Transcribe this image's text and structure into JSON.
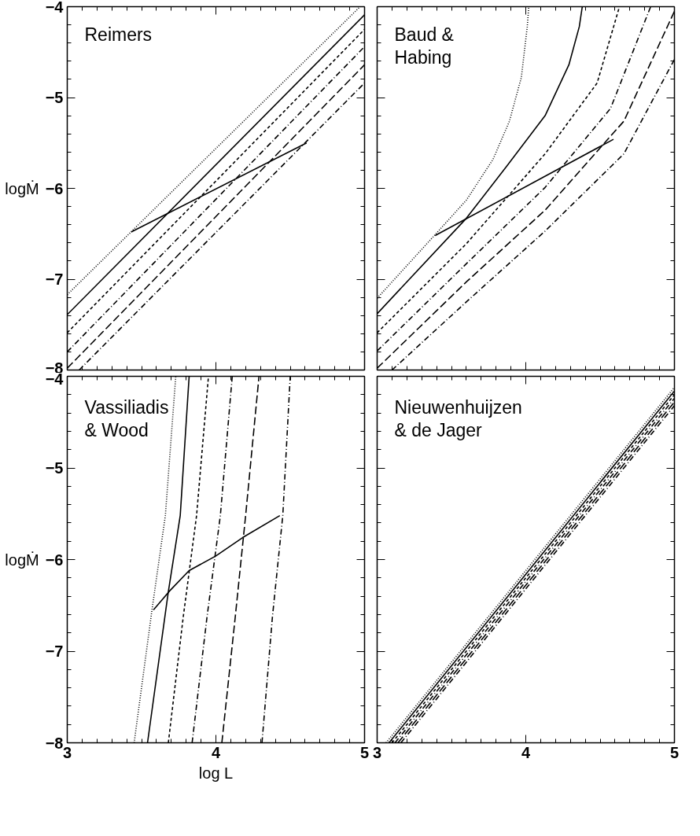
{
  "chart_data": [
    {
      "type": "line",
      "title": "Reimers",
      "ylabel": "logṀ",
      "tick_labels": "y",
      "grid": false,
      "marker": "none",
      "xlim": [
        3,
        5
      ],
      "ylim": [
        -8,
        -4
      ],
      "xticks": [
        3,
        {
          "value": 3.1,
          "label": null
        },
        {
          "value": 3.2,
          "label": null
        },
        {
          "value": 3.3,
          "label": null
        },
        {
          "value": 3.4,
          "label": null
        },
        {
          "value": 3.5,
          "label": null
        },
        {
          "value": 3.6,
          "label": null
        },
        {
          "value": 3.7,
          "label": null
        },
        {
          "value": 3.8,
          "label": null
        },
        {
          "value": 3.9,
          "label": null
        },
        4,
        {
          "value": 4.1,
          "label": null
        },
        {
          "value": 4.2,
          "label": null
        },
        {
          "value": 4.3,
          "label": null
        },
        {
          "value": 4.4,
          "label": null
        },
        {
          "value": 4.5,
          "label": null
        },
        {
          "value": 4.6,
          "label": null
        },
        {
          "value": 4.7,
          "label": null
        },
        {
          "value": 4.8,
          "label": null
        },
        {
          "value": 4.9,
          "label": null
        },
        5
      ],
      "yticks": [
        -8,
        {
          "value": -7.8,
          "label": null
        },
        {
          "value": -7.6,
          "label": null
        },
        {
          "value": -7.4,
          "label": null
        },
        {
          "value": -7.2,
          "label": null
        },
        -7,
        {
          "value": -6.8,
          "label": null
        },
        {
          "value": -6.6,
          "label": null
        },
        {
          "value": -6.4,
          "label": null
        },
        {
          "value": -6.2,
          "label": null
        },
        -6,
        {
          "value": -5.8,
          "label": null
        },
        {
          "value": -5.6,
          "label": null
        },
        {
          "value": -5.4,
          "label": null
        },
        {
          "value": -5.2,
          "label": null
        },
        -5,
        {
          "value": -4.8,
          "label": null
        },
        {
          "value": -4.6,
          "label": null
        },
        {
          "value": -4.4,
          "label": null
        },
        {
          "value": -4.2,
          "label": null
        },
        -4
      ],
      "series": [
        {
          "color": "#000000",
          "line_style": "dotted",
          "x": [
            3,
            4.97
          ],
          "values": [
            -7.17,
            -4.0
          ]
        },
        {
          "color": "#000000",
          "line_style": "solid",
          "x": [
            3,
            5
          ],
          "values": [
            -7.39,
            -4.09
          ]
        },
        {
          "color": "#000000",
          "line_style": "dashed",
          "x": [
            3,
            5
          ],
          "values": [
            -7.59,
            -4.25
          ]
        },
        {
          "color": "#000000",
          "line_style": "dashdot",
          "x": [
            3,
            5
          ],
          "values": [
            -7.8,
            -4.44
          ]
        },
        {
          "color": "#000000",
          "line_style": "longdash",
          "x": [
            3,
            5
          ],
          "values": [
            -7.98,
            -4.64
          ]
        },
        {
          "color": "#000000",
          "line_style": "dashdot",
          "x": [
            3.08,
            5
          ],
          "values": [
            -8.0,
            -4.84
          ]
        },
        {
          "color": "#000000",
          "line_style": "solid",
          "x": [
            3.43,
            4.61
          ],
          "values": [
            -6.48,
            -5.5
          ]
        }
      ]
    },
    {
      "type": "line",
      "title": "Baud &\nHabing",
      "tick_labels": false,
      "grid": false,
      "marker": "none",
      "xlim": [
        3,
        5
      ],
      "ylim": [
        -8,
        -4
      ],
      "xticks": [
        3,
        {
          "value": 3.1,
          "label": null
        },
        {
          "value": 3.2,
          "label": null
        },
        {
          "value": 3.3,
          "label": null
        },
        {
          "value": 3.4,
          "label": null
        },
        {
          "value": 3.5,
          "label": null
        },
        {
          "value": 3.6,
          "label": null
        },
        {
          "value": 3.7,
          "label": null
        },
        {
          "value": 3.8,
          "label": null
        },
        {
          "value": 3.9,
          "label": null
        },
        4,
        {
          "value": 4.1,
          "label": null
        },
        {
          "value": 4.2,
          "label": null
        },
        {
          "value": 4.3,
          "label": null
        },
        {
          "value": 4.4,
          "label": null
        },
        {
          "value": 4.5,
          "label": null
        },
        {
          "value": 4.6,
          "label": null
        },
        {
          "value": 4.7,
          "label": null
        },
        {
          "value": 4.8,
          "label": null
        },
        {
          "value": 4.9,
          "label": null
        },
        5
      ],
      "yticks": [
        -8,
        {
          "value": -7.8,
          "label": null
        },
        {
          "value": -7.6,
          "label": null
        },
        {
          "value": -7.4,
          "label": null
        },
        {
          "value": -7.2,
          "label": null
        },
        -7,
        {
          "value": -6.8,
          "label": null
        },
        {
          "value": -6.6,
          "label": null
        },
        {
          "value": -6.4,
          "label": null
        },
        {
          "value": -6.2,
          "label": null
        },
        -6,
        {
          "value": -5.8,
          "label": null
        },
        {
          "value": -5.6,
          "label": null
        },
        {
          "value": -5.4,
          "label": null
        },
        {
          "value": -5.2,
          "label": null
        },
        -5,
        {
          "value": -4.8,
          "label": null
        },
        {
          "value": -4.6,
          "label": null
        },
        {
          "value": -4.4,
          "label": null
        },
        {
          "value": -4.2,
          "label": null
        },
        -4
      ],
      "series": [
        {
          "color": "#000000",
          "line_style": "dotted",
          "x": [
            3,
            3.39,
            3.6,
            3.78,
            3.89,
            3.97,
            4.01,
            4.02
          ],
          "values": [
            -7.21,
            -6.51,
            -6.13,
            -5.68,
            -5.26,
            -4.78,
            -4.22,
            -4.0
          ]
        },
        {
          "color": "#000000",
          "line_style": "solid",
          "x": [
            3,
            3.6,
            3.87,
            4.13,
            4.29,
            4.36,
            4.38
          ],
          "values": [
            -7.38,
            -6.33,
            -5.76,
            -5.2,
            -4.64,
            -4.22,
            -4.0
          ]
        },
        {
          "color": "#000000",
          "line_style": "dashed",
          "x": [
            3,
            3.6,
            4.13,
            4.48,
            4.63
          ],
          "values": [
            -7.59,
            -6.61,
            -5.62,
            -4.84,
            -4.0
          ]
        },
        {
          "color": "#000000",
          "line_style": "dashdot",
          "x": [
            3,
            3.6,
            4.13,
            4.57,
            4.84
          ],
          "values": [
            -7.79,
            -6.83,
            -5.99,
            -5.12,
            -4.0
          ]
        },
        {
          "color": "#000000",
          "line_style": "longdash",
          "x": [
            3,
            3.6,
            4.13,
            4.66,
            5
          ],
          "values": [
            -7.98,
            -7.03,
            -6.24,
            -5.26,
            -4.05
          ]
        },
        {
          "color": "#000000",
          "line_style": "dashdot",
          "x": [
            3.1,
            3.6,
            4.13,
            4.66,
            5
          ],
          "values": [
            -8.0,
            -7.25,
            -6.47,
            -5.62,
            -4.58
          ]
        },
        {
          "color": "#000000",
          "line_style": "solid",
          "x": [
            3.39,
            4.59
          ],
          "values": [
            -6.52,
            -5.46
          ]
        }
      ]
    },
    {
      "type": "line",
      "title": "Vassiliadis\n& Wood",
      "ylabel": "logṀ",
      "xlabel": "log L",
      "grid": false,
      "marker": "none",
      "xlim": [
        3,
        5
      ],
      "ylim": [
        -8,
        -4
      ],
      "xticks": [
        3,
        {
          "value": 3.1,
          "label": null
        },
        {
          "value": 3.2,
          "label": null
        },
        {
          "value": 3.3,
          "label": null
        },
        {
          "value": 3.4,
          "label": null
        },
        {
          "value": 3.5,
          "label": null
        },
        {
          "value": 3.6,
          "label": null
        },
        {
          "value": 3.7,
          "label": null
        },
        {
          "value": 3.8,
          "label": null
        },
        {
          "value": 3.9,
          "label": null
        },
        4,
        {
          "value": 4.1,
          "label": null
        },
        {
          "value": 4.2,
          "label": null
        },
        {
          "value": 4.3,
          "label": null
        },
        {
          "value": 4.4,
          "label": null
        },
        {
          "value": 4.5,
          "label": null
        },
        {
          "value": 4.6,
          "label": null
        },
        {
          "value": 4.7,
          "label": null
        },
        {
          "value": 4.8,
          "label": null
        },
        {
          "value": 4.9,
          "label": null
        },
        5
      ],
      "yticks": [
        -8,
        {
          "value": -7.8,
          "label": null
        },
        {
          "value": -7.6,
          "label": null
        },
        {
          "value": -7.4,
          "label": null
        },
        {
          "value": -7.2,
          "label": null
        },
        -7,
        {
          "value": -6.8,
          "label": null
        },
        {
          "value": -6.6,
          "label": null
        },
        {
          "value": -6.4,
          "label": null
        },
        {
          "value": -6.2,
          "label": null
        },
        -6,
        {
          "value": -5.8,
          "label": null
        },
        {
          "value": -5.6,
          "label": null
        },
        {
          "value": -5.4,
          "label": null
        },
        {
          "value": -5.2,
          "label": null
        },
        -5,
        {
          "value": -4.8,
          "label": null
        },
        {
          "value": -4.6,
          "label": null
        },
        {
          "value": -4.4,
          "label": null
        },
        {
          "value": -4.2,
          "label": null
        },
        -4
      ],
      "series": [
        {
          "color": "#000000",
          "line_style": "dotted",
          "x": [
            3.45,
            3.57,
            3.66,
            3.73
          ],
          "values": [
            -8.0,
            -6.55,
            -5.52,
            -4.0
          ]
        },
        {
          "color": "#000000",
          "line_style": "solid",
          "x": [
            3.54,
            3.68,
            3.76,
            3.82
          ],
          "values": [
            -8.0,
            -6.35,
            -5.52,
            -4.0
          ]
        },
        {
          "color": "#000000",
          "line_style": "dashed",
          "x": [
            3.68,
            3.78,
            3.87,
            3.95
          ],
          "values": [
            -8.0,
            -6.63,
            -5.52,
            -4.0
          ]
        },
        {
          "color": "#000000",
          "line_style": "dashdot",
          "x": [
            3.84,
            3.94,
            4.03,
            4.11
          ],
          "values": [
            -8.0,
            -6.63,
            -5.52,
            -4.0
          ]
        },
        {
          "color": "#000000",
          "line_style": "longdash",
          "x": [
            4.04,
            4.13,
            4.2,
            4.29
          ],
          "values": [
            -8.0,
            -6.63,
            -5.52,
            -4.0
          ]
        },
        {
          "color": "#000000",
          "line_style": "dashdot",
          "x": [
            4.31,
            4.38,
            4.45,
            4.5
          ],
          "values": [
            -8.0,
            -6.63,
            -5.52,
            -4.0
          ]
        },
        {
          "color": "#000000",
          "line_style": "solid",
          "x": [
            3.58,
            3.69,
            3.82,
            4.0,
            4.18,
            4.43
          ],
          "values": [
            -6.55,
            -6.34,
            -6.12,
            -5.96,
            -5.76,
            -5.52
          ]
        }
      ]
    },
    {
      "type": "line",
      "title": "Nieuwenhuijzen\n& de Jager",
      "tick_labels": "x",
      "grid": false,
      "marker": "none",
      "xlim": [
        3,
        5
      ],
      "ylim": [
        -8,
        -4
      ],
      "xticks": [
        3,
        {
          "value": 3.1,
          "label": null
        },
        {
          "value": 3.2,
          "label": null
        },
        {
          "value": 3.3,
          "label": null
        },
        {
          "value": 3.4,
          "label": null
        },
        {
          "value": 3.5,
          "label": null
        },
        {
          "value": 3.6,
          "label": null
        },
        {
          "value": 3.7,
          "label": null
        },
        {
          "value": 3.8,
          "label": null
        },
        {
          "value": 3.9,
          "label": null
        },
        4,
        {
          "value": 4.1,
          "label": null
        },
        {
          "value": 4.2,
          "label": null
        },
        {
          "value": 4.3,
          "label": null
        },
        {
          "value": 4.4,
          "label": null
        },
        {
          "value": 4.5,
          "label": null
        },
        {
          "value": 4.6,
          "label": null
        },
        {
          "value": 4.7,
          "label": null
        },
        {
          "value": 4.8,
          "label": null
        },
        {
          "value": 4.9,
          "label": null
        },
        5
      ],
      "yticks": [
        -8,
        {
          "value": -7.8,
          "label": null
        },
        {
          "value": -7.6,
          "label": null
        },
        {
          "value": -7.4,
          "label": null
        },
        {
          "value": -7.2,
          "label": null
        },
        -7,
        {
          "value": -6.8,
          "label": null
        },
        {
          "value": -6.6,
          "label": null
        },
        {
          "value": -6.4,
          "label": null
        },
        {
          "value": -6.2,
          "label": null
        },
        -6,
        {
          "value": -5.8,
          "label": null
        },
        {
          "value": -5.6,
          "label": null
        },
        {
          "value": -5.4,
          "label": null
        },
        {
          "value": -5.2,
          "label": null
        },
        -5,
        {
          "value": -4.8,
          "label": null
        },
        {
          "value": -4.6,
          "label": null
        },
        {
          "value": -4.4,
          "label": null
        },
        {
          "value": -4.2,
          "label": null
        },
        -4
      ],
      "series": [
        {
          "color": "#000000",
          "line_style": "dotted",
          "x": [
            3.06,
            5
          ],
          "values": [
            -8.0,
            -4.12
          ]
        },
        {
          "color": "#000000",
          "line_style": "solid",
          "x": [
            3.08,
            5
          ],
          "values": [
            -8.0,
            -4.16
          ]
        },
        {
          "color": "#000000",
          "line_style": "dashed",
          "x": [
            3.1,
            5
          ],
          "values": [
            -8.0,
            -4.2
          ]
        },
        {
          "color": "#000000",
          "line_style": "dashdot",
          "x": [
            3.12,
            5
          ],
          "values": [
            -8.0,
            -4.24
          ]
        },
        {
          "color": "#000000",
          "line_style": "longdash",
          "x": [
            3.14,
            5
          ],
          "values": [
            -8.0,
            -4.28
          ]
        },
        {
          "color": "#000000",
          "line_style": "dashdot",
          "x": [
            3.16,
            5
          ],
          "values": [
            -8.0,
            -4.32
          ]
        }
      ]
    }
  ]
}
